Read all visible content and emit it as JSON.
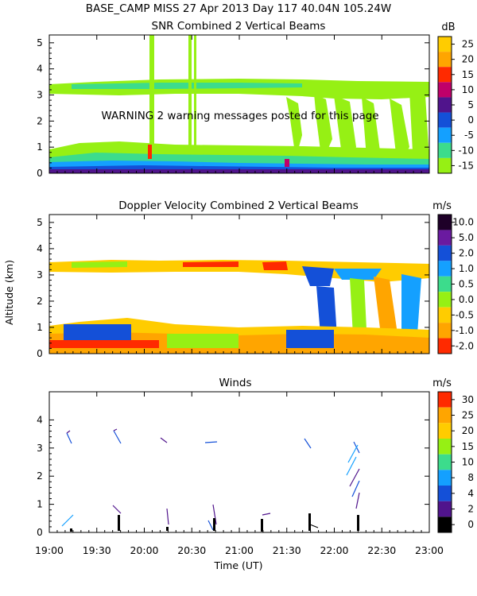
{
  "header": {
    "line1": "BASE_CAMP MISS  27 Apr 2013 Day 117 40.04N 105.24W"
  },
  "warning": "WARNING  2 warning messages posted for this page",
  "ylabel": "Altitude (km)",
  "xlabel": "Time (UT)",
  "x_ticks": [
    "19:00",
    "19:30",
    "20:00",
    "20:30",
    "21:00",
    "21:30",
    "22:00",
    "22:30",
    "23:00"
  ],
  "chart_data": [
    {
      "type": "heatmap",
      "title": "SNR Combined 2 Vertical Beams",
      "units": "dB",
      "xlabel": "Time (UT)",
      "ylabel": "Altitude (km)",
      "ylim": [
        0,
        5.3
      ],
      "yticks": [
        "0",
        "1",
        "2",
        "3",
        "4",
        "5"
      ],
      "colorbar": {
        "labels": [
          "25",
          "20",
          "15",
          "10",
          "5",
          "0",
          "-5",
          "-10",
          "-15"
        ],
        "colors": [
          "#ffcc00",
          "#ffa500",
          "#ff2a00",
          "#c0006a",
          "#50148c",
          "#1450d8",
          "#14a0ff",
          "#3cdc8c",
          "#96f014"
        ]
      }
    },
    {
      "type": "heatmap",
      "title": "Doppler Velocity Combined 2 Vertical Beams",
      "units": "m/s",
      "xlabel": "Time (UT)",
      "ylabel": "Altitude (km)",
      "ylim": [
        0,
        5.3
      ],
      "yticks": [
        "0",
        "1",
        "2",
        "3",
        "4",
        "5"
      ],
      "colorbar": {
        "labels": [
          "10.0",
          "5.0",
          "2.0",
          "1.0",
          "0.5",
          "0.0",
          "-0.5",
          "-1.0",
          "-2.0"
        ],
        "colors": [
          "#1e0028",
          "#6a1aa0",
          "#1450d8",
          "#14a0ff",
          "#3cdc8c",
          "#96f014",
          "#ffcc00",
          "#ffa500",
          "#ff2a00"
        ]
      }
    },
    {
      "type": "scatter",
      "title": "Winds",
      "units": "m/s",
      "xlabel": "Time (UT)",
      "ylabel": "Altitude (km)",
      "ylim": [
        0,
        5
      ],
      "yticks": [
        "0",
        "1",
        "2",
        "3",
        "4"
      ],
      "colorbar": {
        "labels": [
          "30",
          "25",
          "20",
          "15",
          "10",
          "8",
          "4",
          "2",
          "0"
        ],
        "colors": [
          "#ff2a00",
          "#ffa500",
          "#ffcc00",
          "#96f014",
          "#3cdc8c",
          "#14a0ff",
          "#1450d8",
          "#50148c",
          "#000000"
        ]
      }
    }
  ]
}
